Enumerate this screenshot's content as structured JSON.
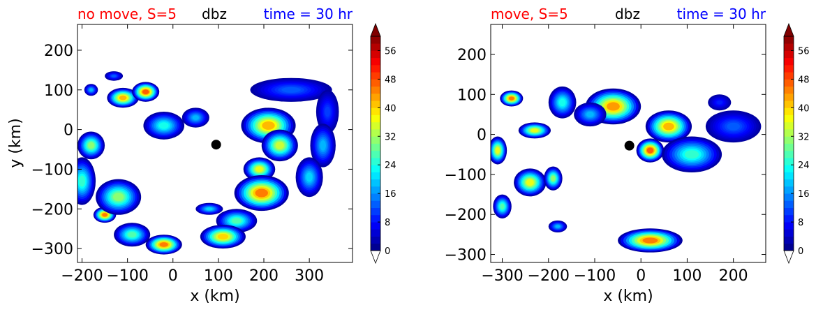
{
  "chart_data": [
    {
      "type": "contour",
      "title_left": "no move, S=5",
      "title_center": "dbz",
      "title_right": "time = 30 hr",
      "title_colors": {
        "left": "#ff0000",
        "center": "#000000",
        "right": "#0000ff"
      },
      "xlabel": "x (km)",
      "ylabel": "y (km)",
      "xlim": [
        -210,
        395
      ],
      "ylim": [
        -335,
        265
      ],
      "xticks": [
        -200,
        -100,
        0,
        100,
        200,
        300
      ],
      "xtick_labels": [
        "−200",
        "−100",
        "0",
        "100",
        "200",
        "300"
      ],
      "yticks": [
        -300,
        -200,
        -100,
        0,
        100,
        200
      ],
      "ytick_labels": [
        "−300",
        "−200",
        "−100",
        "0",
        "100",
        "200"
      ],
      "center_marker": {
        "x": 95,
        "y": -38
      },
      "colorbar": {
        "ticks": [
          0,
          8,
          16,
          24,
          32,
          40,
          48,
          56
        ],
        "tick_labels": [
          "0",
          "8",
          "16",
          "24",
          "32",
          "40",
          "48",
          "56"
        ],
        "min": 0,
        "max": 60,
        "extend": "both"
      },
      "cells": [
        {
          "x": 260,
          "y": 100,
          "rx": 90,
          "ry": 30,
          "peak": 14
        },
        {
          "x": 340,
          "y": 45,
          "rx": 25,
          "ry": 55,
          "peak": 12
        },
        {
          "x": 330,
          "y": -40,
          "rx": 28,
          "ry": 55,
          "peak": 20
        },
        {
          "x": 300,
          "y": -120,
          "rx": 30,
          "ry": 50,
          "peak": 22
        },
        {
          "x": 210,
          "y": 10,
          "rx": 60,
          "ry": 45,
          "peak": 46
        },
        {
          "x": 235,
          "y": -40,
          "rx": 40,
          "ry": 40,
          "peak": 38
        },
        {
          "x": 190,
          "y": -100,
          "rx": 35,
          "ry": 30,
          "peak": 40
        },
        {
          "x": 195,
          "y": -160,
          "rx": 60,
          "ry": 45,
          "peak": 50
        },
        {
          "x": 140,
          "y": -230,
          "rx": 45,
          "ry": 30,
          "peak": 30
        },
        {
          "x": 110,
          "y": -270,
          "rx": 50,
          "ry": 30,
          "peak": 44
        },
        {
          "x": 80,
          "y": -200,
          "rx": 30,
          "ry": 15,
          "peak": 22
        },
        {
          "x": -20,
          "y": -290,
          "rx": 40,
          "ry": 25,
          "peak": 50
        },
        {
          "x": -90,
          "y": -265,
          "rx": 40,
          "ry": 30,
          "peak": 30
        },
        {
          "x": -150,
          "y": -215,
          "rx": 25,
          "ry": 20,
          "peak": 50
        },
        {
          "x": -120,
          "y": -170,
          "rx": 50,
          "ry": 45,
          "peak": 34
        },
        {
          "x": -200,
          "y": -130,
          "rx": 30,
          "ry": 60,
          "peak": 28
        },
        {
          "x": -180,
          "y": -40,
          "rx": 30,
          "ry": 35,
          "peak": 34
        },
        {
          "x": -110,
          "y": 80,
          "rx": 35,
          "ry": 25,
          "peak": 46
        },
        {
          "x": -60,
          "y": 95,
          "rx": 30,
          "ry": 25,
          "peak": 52
        },
        {
          "x": -20,
          "y": 10,
          "rx": 45,
          "ry": 35,
          "peak": 26
        },
        {
          "x": 50,
          "y": 30,
          "rx": 30,
          "ry": 25,
          "peak": 20
        },
        {
          "x": -180,
          "y": 100,
          "rx": 15,
          "ry": 15,
          "peak": 20
        },
        {
          "x": -130,
          "y": 135,
          "rx": 20,
          "ry": 12,
          "peak": 14
        }
      ]
    },
    {
      "type": "contour",
      "title_left": "move, S=5",
      "title_center": "dbz",
      "title_right": "time = 30 hr",
      "title_colors": {
        "left": "#ff0000",
        "center": "#000000",
        "right": "#0000ff"
      },
      "xlabel": "x (km)",
      "ylabel": "",
      "xlim": [
        -325,
        270
      ],
      "ylim": [
        -320,
        275
      ],
      "xticks": [
        -300,
        -200,
        -100,
        0,
        100,
        200
      ],
      "xtick_labels": [
        "−300",
        "−200",
        "−100",
        "0",
        "100",
        "200"
      ],
      "yticks": [
        -300,
        -200,
        -100,
        0,
        100,
        200
      ],
      "ytick_labels": [
        "−300",
        "−200",
        "−100",
        "0",
        "100",
        "200"
      ],
      "center_marker": {
        "x": -25,
        "y": -28
      },
      "colorbar": {
        "ticks": [
          0,
          8,
          16,
          24,
          32,
          40,
          48,
          56
        ],
        "tick_labels": [
          "0",
          "8",
          "16",
          "24",
          "32",
          "40",
          "48",
          "56"
        ],
        "min": 0,
        "max": 60,
        "extend": "both"
      },
      "cells": [
        {
          "x": -60,
          "y": 70,
          "rx": 60,
          "ry": 45,
          "peak": 48
        },
        {
          "x": 60,
          "y": 20,
          "rx": 50,
          "ry": 40,
          "peak": 46
        },
        {
          "x": 20,
          "y": -40,
          "rx": 30,
          "ry": 30,
          "peak": 52
        },
        {
          "x": 110,
          "y": -50,
          "rx": 65,
          "ry": 45,
          "peak": 28
        },
        {
          "x": 200,
          "y": 20,
          "rx": 60,
          "ry": 40,
          "peak": 14
        },
        {
          "x": 170,
          "y": 80,
          "rx": 25,
          "ry": 20,
          "peak": 10
        },
        {
          "x": -170,
          "y": 80,
          "rx": 30,
          "ry": 40,
          "peak": 26
        },
        {
          "x": -280,
          "y": 90,
          "rx": 25,
          "ry": 20,
          "peak": 50
        },
        {
          "x": -230,
          "y": 10,
          "rx": 35,
          "ry": 20,
          "peak": 40
        },
        {
          "x": -310,
          "y": -40,
          "rx": 20,
          "ry": 35,
          "peak": 40
        },
        {
          "x": -240,
          "y": -120,
          "rx": 35,
          "ry": 35,
          "peak": 40
        },
        {
          "x": -190,
          "y": -110,
          "rx": 20,
          "ry": 30,
          "peak": 34
        },
        {
          "x": -300,
          "y": -180,
          "rx": 20,
          "ry": 30,
          "peak": 30
        },
        {
          "x": -180,
          "y": -230,
          "rx": 20,
          "ry": 15,
          "peak": 20
        },
        {
          "x": 20,
          "y": -265,
          "rx": 70,
          "ry": 30,
          "peak": 50
        },
        {
          "x": -110,
          "y": 50,
          "rx": 35,
          "ry": 30,
          "peak": 20
        }
      ]
    }
  ]
}
